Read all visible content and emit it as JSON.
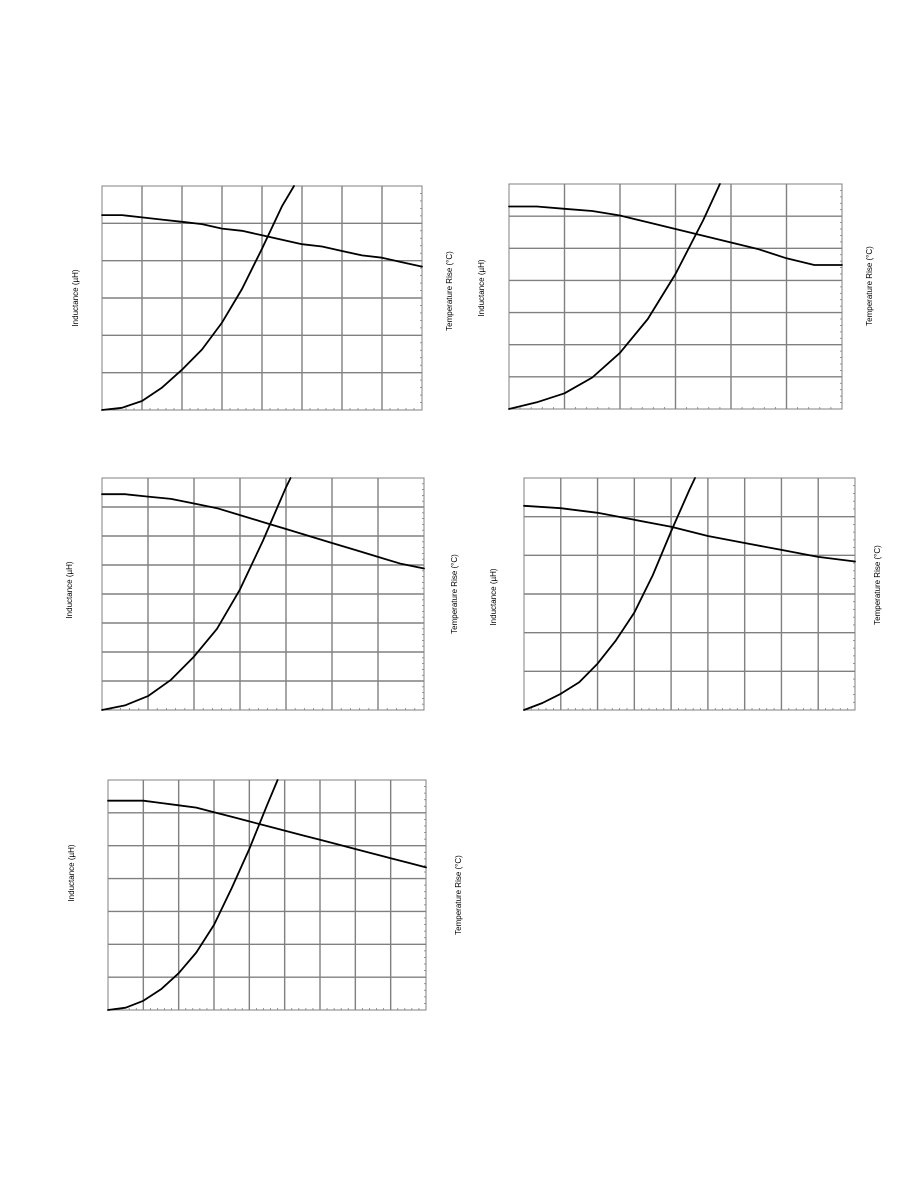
{
  "colors": {
    "grid": "#808080",
    "curve": "#000000",
    "text": "#000000",
    "background": "#ffffff"
  },
  "chart_data": [
    {
      "type": "line",
      "ylabel_left": "Inductance (µH)",
      "ylabel_right": "Temperature Rise (°C)",
      "grid": true,
      "x_divisions": 8,
      "y_divisions": 6,
      "series": [
        {
          "kind": "inductance",
          "points": [
            [
              0,
              0.87
            ],
            [
              0.5,
              0.87
            ],
            [
              1,
              0.86
            ],
            [
              1.5,
              0.85
            ],
            [
              2,
              0.84
            ],
            [
              2.5,
              0.83
            ],
            [
              3,
              0.81
            ],
            [
              3.5,
              0.8
            ],
            [
              4,
              0.78
            ],
            [
              4.5,
              0.76
            ],
            [
              5,
              0.74
            ],
            [
              5.5,
              0.73
            ],
            [
              6,
              0.71
            ],
            [
              6.5,
              0.69
            ],
            [
              7,
              0.68
            ],
            [
              7.5,
              0.66
            ],
            [
              8,
              0.64
            ]
          ]
        },
        {
          "kind": "temperature_rise",
          "points": [
            [
              0,
              0.0
            ],
            [
              0.5,
              0.01
            ],
            [
              1,
              0.04
            ],
            [
              1.5,
              0.1
            ],
            [
              2,
              0.18
            ],
            [
              2.5,
              0.27
            ],
            [
              3,
              0.39
            ],
            [
              3.5,
              0.54
            ],
            [
              4,
              0.72
            ],
            [
              4.5,
              0.91
            ],
            [
              4.8,
              1.0
            ]
          ]
        }
      ]
    },
    {
      "type": "line",
      "ylabel_left": "Inductance (µH)",
      "ylabel_right": "Temperature Rise (°C)",
      "grid": true,
      "x_divisions": 6,
      "y_divisions": 7,
      "series": [
        {
          "kind": "inductance",
          "points": [
            [
              0,
              0.9
            ],
            [
              0.5,
              0.9
            ],
            [
              1,
              0.89
            ],
            [
              1.5,
              0.88
            ],
            [
              2,
              0.86
            ],
            [
              2.5,
              0.83
            ],
            [
              3,
              0.8
            ],
            [
              3.5,
              0.77
            ],
            [
              4,
              0.74
            ],
            [
              4.5,
              0.71
            ],
            [
              5,
              0.67
            ],
            [
              5.5,
              0.64
            ],
            [
              6,
              0.64
            ]
          ]
        },
        {
          "kind": "temperature_rise",
          "points": [
            [
              0,
              0.0
            ],
            [
              0.5,
              0.03
            ],
            [
              1,
              0.07
            ],
            [
              1.5,
              0.14
            ],
            [
              2,
              0.25
            ],
            [
              2.5,
              0.4
            ],
            [
              3,
              0.6
            ],
            [
              3.5,
              0.84
            ],
            [
              3.8,
              1.0
            ]
          ]
        }
      ]
    },
    {
      "type": "line",
      "ylabel_left": "Inductance (µH)",
      "ylabel_right": "Temperature Rise (°C)",
      "grid": true,
      "x_divisions": 7,
      "y_divisions": 8,
      "series": [
        {
          "kind": "inductance",
          "points": [
            [
              0,
              0.93
            ],
            [
              0.5,
              0.93
            ],
            [
              1,
              0.92
            ],
            [
              1.5,
              0.91
            ],
            [
              2,
              0.89
            ],
            [
              2.5,
              0.87
            ],
            [
              3,
              0.84
            ],
            [
              3.5,
              0.81
            ],
            [
              4,
              0.78
            ],
            [
              4.5,
              0.75
            ],
            [
              5,
              0.72
            ],
            [
              5.5,
              0.69
            ],
            [
              6,
              0.66
            ],
            [
              6.5,
              0.63
            ],
            [
              7,
              0.61
            ]
          ]
        },
        {
          "kind": "temperature_rise",
          "points": [
            [
              0,
              0.0
            ],
            [
              0.5,
              0.02
            ],
            [
              1,
              0.06
            ],
            [
              1.5,
              0.13
            ],
            [
              2,
              0.23
            ],
            [
              2.5,
              0.35
            ],
            [
              3,
              0.52
            ],
            [
              3.5,
              0.73
            ],
            [
              4,
              0.96
            ],
            [
              4.1,
              1.0
            ]
          ]
        }
      ]
    },
    {
      "type": "line",
      "ylabel_left": "Inductance (µH)",
      "ylabel_right": "Temperature Rise (°C)",
      "grid": true,
      "x_divisions": 9,
      "y_divisions": 6,
      "series": [
        {
          "kind": "inductance",
          "points": [
            [
              0,
              0.88
            ],
            [
              1,
              0.87
            ],
            [
              2,
              0.85
            ],
            [
              3,
              0.82
            ],
            [
              4,
              0.79
            ],
            [
              5,
              0.75
            ],
            [
              6,
              0.72
            ],
            [
              7,
              0.69
            ],
            [
              8,
              0.66
            ],
            [
              9,
              0.64
            ]
          ]
        },
        {
          "kind": "temperature_rise",
          "points": [
            [
              0,
              0.0
            ],
            [
              0.5,
              0.03
            ],
            [
              1,
              0.07
            ],
            [
              1.5,
              0.12
            ],
            [
              2,
              0.2
            ],
            [
              2.5,
              0.3
            ],
            [
              3,
              0.42
            ],
            [
              3.5,
              0.58
            ],
            [
              4,
              0.77
            ],
            [
              4.5,
              0.95
            ],
            [
              4.65,
              1.0
            ]
          ]
        }
      ]
    },
    {
      "type": "line",
      "ylabel_left": "Inductance (µH)",
      "ylabel_right": "Temperature Rise (°C)",
      "grid": true,
      "x_divisions": 9,
      "y_divisions": 7,
      "series": [
        {
          "kind": "inductance",
          "points": [
            [
              0,
              0.91
            ],
            [
              0.5,
              0.91
            ],
            [
              1,
              0.91
            ],
            [
              1.5,
              0.9
            ],
            [
              2,
              0.89
            ],
            [
              2.5,
              0.88
            ],
            [
              3,
              0.86
            ],
            [
              3.5,
              0.84
            ],
            [
              4,
              0.82
            ],
            [
              4.5,
              0.8
            ],
            [
              5,
              0.78
            ],
            [
              5.5,
              0.76
            ],
            [
              6,
              0.74
            ],
            [
              6.5,
              0.72
            ],
            [
              7,
              0.7
            ],
            [
              7.5,
              0.68
            ],
            [
              8,
              0.66
            ],
            [
              8.5,
              0.64
            ],
            [
              9,
              0.62
            ]
          ]
        },
        {
          "kind": "temperature_rise",
          "points": [
            [
              0,
              0.0
            ],
            [
              0.5,
              0.01
            ],
            [
              1,
              0.04
            ],
            [
              1.5,
              0.09
            ],
            [
              2,
              0.16
            ],
            [
              2.5,
              0.25
            ],
            [
              3,
              0.37
            ],
            [
              3.5,
              0.53
            ],
            [
              4,
              0.7
            ],
            [
              4.5,
              0.89
            ],
            [
              4.8,
              1.0
            ]
          ]
        }
      ]
    }
  ]
}
